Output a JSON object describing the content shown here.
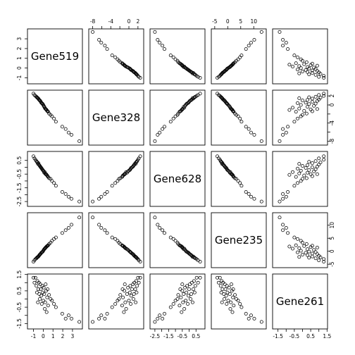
{
  "chart_data": {
    "type": "scatter",
    "subtype": "pairs-matrix",
    "variables": [
      "Gene519",
      "Gene328",
      "Gene628",
      "Gene235",
      "Gene261"
    ],
    "ranges": [
      [
        -1.4,
        3.8
      ],
      [
        -8.4,
        2.8
      ],
      [
        -2.7,
        1.0
      ],
      [
        -5.5,
        14.0
      ],
      [
        -1.7,
        1.4
      ]
    ],
    "ticks": [
      [
        -1,
        0,
        1,
        2,
        3
      ],
      [
        -8,
        -6,
        -4,
        -2,
        0,
        2
      ],
      [
        -2.5,
        -2.0,
        -1.5,
        -1.0,
        -0.5,
        0.0,
        0.5
      ],
      [
        -5,
        0,
        5,
        10
      ],
      [
        -1.5,
        -1.0,
        -0.5,
        0.0,
        0.5,
        1.0,
        1.5
      ]
    ],
    "tick_labels": [
      [
        "-1",
        "0",
        "1",
        "2",
        "3"
      ],
      [
        "-8",
        "",
        "-4",
        "",
        "0",
        "2"
      ],
      [
        "-2.5",
        "",
        "-1.5",
        "",
        "-0.5",
        "",
        "0.5"
      ],
      [
        "-5",
        "0",
        "5",
        "10"
      ],
      [
        "-1.5",
        "",
        "-0.5",
        "",
        "0.5",
        "",
        "1.5"
      ]
    ],
    "observations": [
      [
        3.7,
        -8.0,
        -2.5,
        13.0,
        -1.4
      ],
      [
        2.9,
        -6.6,
        -2.3,
        10.2,
        -1.2
      ],
      [
        2.6,
        -6.1,
        -2.15,
        9.0,
        -1.0
      ],
      [
        2.3,
        -5.3,
        -1.95,
        8.1,
        -1.2
      ],
      [
        1.95,
        -4.8,
        -1.8,
        7.0,
        -0.9
      ],
      [
        1.3,
        -3.7,
        -1.35,
        5.3,
        -0.5
      ],
      [
        1.1,
        -3.0,
        -1.15,
        4.7,
        -0.3
      ],
      [
        0.9,
        -2.5,
        -1.0,
        4.0,
        -0.1
      ],
      [
        0.75,
        -2.2,
        -0.85,
        3.3,
        0.0
      ],
      [
        0.6,
        -1.9,
        -0.8,
        2.8,
        0.25
      ],
      [
        0.5,
        -1.5,
        -0.7,
        2.3,
        -0.4
      ],
      [
        0.4,
        -1.3,
        -0.6,
        2.0,
        0.1
      ],
      [
        0.3,
        -1.0,
        -0.5,
        1.6,
        0.5
      ],
      [
        0.2,
        -0.8,
        -0.45,
        1.2,
        -0.2
      ],
      [
        0.1,
        -0.4,
        -0.4,
        0.8,
        0.3
      ],
      [
        0.05,
        -0.2,
        -0.3,
        0.5,
        0.7
      ],
      [
        0.0,
        0.0,
        -0.25,
        0.2,
        -0.1
      ],
      [
        -0.05,
        0.2,
        -0.2,
        -0.1,
        0.4
      ],
      [
        -0.1,
        0.3,
        -0.15,
        -0.3,
        0.8
      ],
      [
        -0.2,
        0.5,
        -0.05,
        -0.6,
        0.2
      ],
      [
        -0.25,
        0.7,
        0.0,
        -0.9,
        0.6
      ],
      [
        -0.3,
        0.9,
        0.05,
        -1.1,
        0.9
      ],
      [
        -0.4,
        1.1,
        0.15,
        -1.5,
        0.3
      ],
      [
        -0.45,
        1.2,
        0.2,
        -1.8,
        1.0
      ],
      [
        -0.5,
        1.4,
        0.3,
        -2.0,
        0.6
      ],
      [
        -0.6,
        1.6,
        0.35,
        -2.3,
        1.1
      ],
      [
        -0.7,
        1.8,
        0.45,
        -2.7,
        0.8
      ],
      [
        -0.8,
        2.0,
        0.55,
        -3.0,
        1.3
      ],
      [
        -0.9,
        2.2,
        0.65,
        -3.5,
        1.0
      ],
      [
        -1.0,
        2.5,
        0.8,
        -4.0,
        1.3
      ],
      [
        0.15,
        -0.6,
        -0.35,
        1.0,
        -0.6
      ],
      [
        0.35,
        -1.1,
        -0.55,
        1.8,
        -0.8
      ],
      [
        -0.15,
        0.4,
        -0.1,
        -0.4,
        -0.3
      ],
      [
        -0.35,
        1.0,
        0.1,
        -1.3,
        0.0
      ],
      [
        0.25,
        -0.9,
        -0.5,
        1.4,
        0.9
      ],
      [
        -0.55,
        1.5,
        0.25,
        -2.2,
        -0.2
      ],
      [
        0.45,
        -1.4,
        -0.65,
        2.1,
        0.6
      ],
      [
        -0.65,
        1.7,
        0.4,
        -2.5,
        0.4
      ]
    ]
  }
}
